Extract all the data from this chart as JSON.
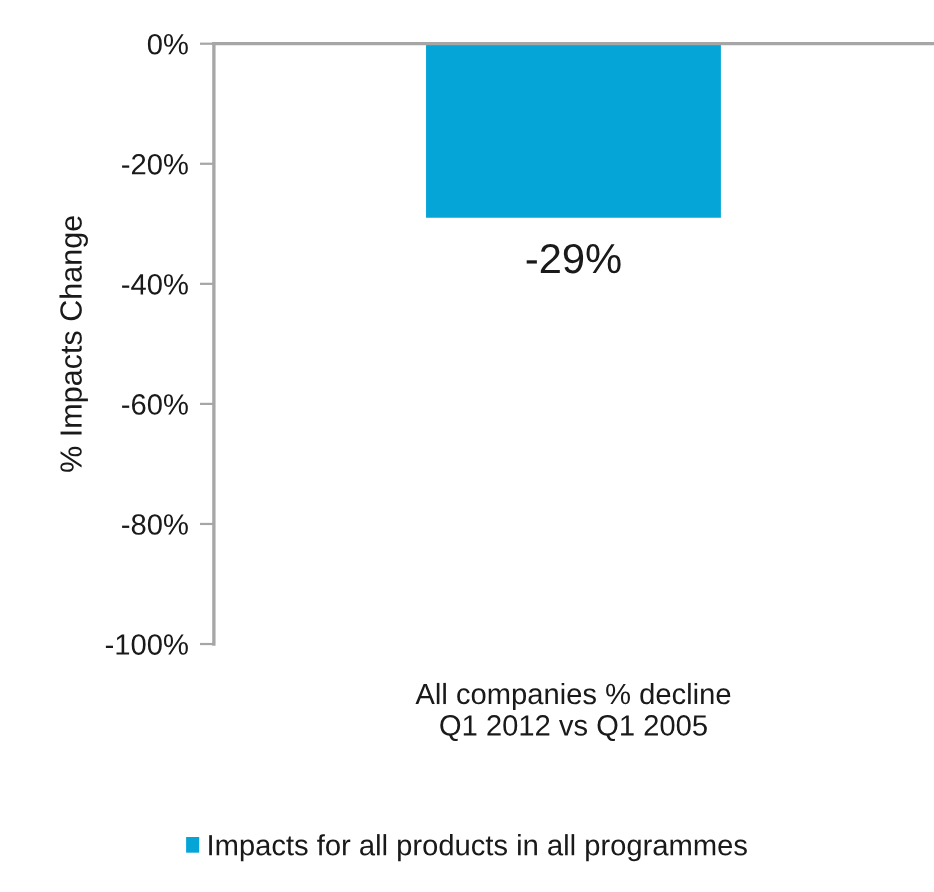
{
  "chart_data": {
    "type": "bar",
    "ylabel": "% Impacts Change",
    "categories": [
      "All companies % decline\nQ1 2012 vs Q1 2005"
    ],
    "series": [
      {
        "name": "Impacts for all products in all programmes",
        "color": "#05a5d8",
        "values": [
          -29
        ],
        "value_labels": [
          "-29%"
        ]
      }
    ],
    "ylim": [
      -100,
      0
    ],
    "yticks": [
      {
        "value": 0,
        "label": "0%"
      },
      {
        "value": -20,
        "label": "-20%"
      },
      {
        "value": -40,
        "label": "-40%"
      },
      {
        "value": -60,
        "label": "-60%"
      },
      {
        "value": -80,
        "label": "-80%"
      },
      {
        "value": -100,
        "label": "-100%"
      }
    ],
    "legend": "bottom"
  }
}
